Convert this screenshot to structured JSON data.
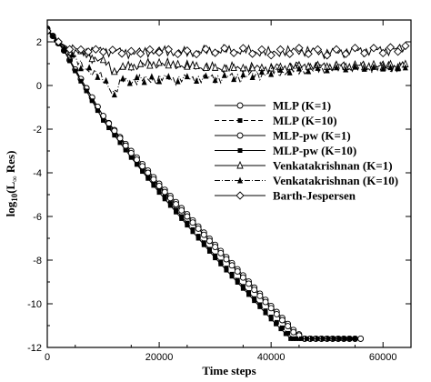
{
  "chart_data": {
    "type": "line",
    "xlabel": "Time steps",
    "ylabel_main": "log",
    "ylabel_sub": "10",
    "ylabel_rest": "(L",
    "ylabel_sub2": "∞",
    "ylabel_end": " Res)",
    "xlim": [
      0,
      65000
    ],
    "ylim": [
      -12,
      3
    ],
    "x_ticks": [
      0,
      20000,
      40000,
      60000
    ],
    "x_tick_labels": [
      "0",
      "20000",
      "40000",
      "60000"
    ],
    "y_ticks": [
      2,
      0,
      -2,
      -4,
      -6,
      -8,
      -10,
      -12
    ],
    "y_tick_labels": [
      "2",
      "0",
      "-2",
      "-4",
      "-6",
      "-8",
      "-10",
      "-12"
    ],
    "legend_position": "right",
    "series": [
      {
        "name": "MLP (K=1)",
        "marker": "circle-open",
        "dash": "solid",
        "points": [
          [
            0,
            2.6
          ],
          [
            3000,
            1.6
          ],
          [
            6000,
            0.3
          ],
          [
            10000,
            -1.4
          ],
          [
            15000,
            -3.0
          ],
          [
            20000,
            -4.5
          ],
          [
            25000,
            -5.9
          ],
          [
            30000,
            -7.3
          ],
          [
            35000,
            -8.7
          ],
          [
            40000,
            -10.1
          ],
          [
            44000,
            -11.2
          ],
          [
            46000,
            -11.6
          ],
          [
            56000,
            -11.6
          ]
        ]
      },
      {
        "name": "MLP (K=10)",
        "marker": "square-filled",
        "dash": "dashed",
        "points": [
          [
            0,
            2.6
          ],
          [
            3000,
            1.6
          ],
          [
            6000,
            0.2
          ],
          [
            10000,
            -1.5
          ],
          [
            15000,
            -3.2
          ],
          [
            20000,
            -4.8
          ],
          [
            25000,
            -6.3
          ],
          [
            30000,
            -7.8
          ],
          [
            35000,
            -9.2
          ],
          [
            40000,
            -10.6
          ],
          [
            44000,
            -11.6
          ],
          [
            55000,
            -11.6
          ]
        ]
      },
      {
        "name": "MLP-pw (K=1)",
        "marker": "circle-open",
        "dash": "solid",
        "points": [
          [
            0,
            2.6
          ],
          [
            3000,
            1.6
          ],
          [
            6000,
            0.3
          ],
          [
            10000,
            -1.4
          ],
          [
            15000,
            -3.1
          ],
          [
            20000,
            -4.6
          ],
          [
            25000,
            -6.0
          ],
          [
            30000,
            -7.4
          ],
          [
            35000,
            -8.8
          ],
          [
            40000,
            -10.2
          ],
          [
            44000,
            -11.3
          ],
          [
            46000,
            -11.6
          ],
          [
            56000,
            -11.6
          ]
        ]
      },
      {
        "name": "MLP-pw (K=10)",
        "marker": "square-filled",
        "dash": "solid",
        "points": [
          [
            0,
            2.6
          ],
          [
            3000,
            1.6
          ],
          [
            6000,
            0.2
          ],
          [
            10000,
            -1.6
          ],
          [
            15000,
            -3.3
          ],
          [
            20000,
            -4.9
          ],
          [
            25000,
            -6.4
          ],
          [
            30000,
            -7.9
          ],
          [
            35000,
            -9.3
          ],
          [
            40000,
            -10.7
          ],
          [
            43500,
            -11.6
          ],
          [
            55000,
            -11.6
          ]
        ]
      },
      {
        "name": "Venkatakrishnan (K=1)",
        "marker": "triangle-open",
        "dash": "solid",
        "points": [
          [
            0,
            2.5
          ],
          [
            2000,
            2.0
          ],
          [
            4000,
            1.6
          ],
          [
            6000,
            1.5
          ],
          [
            8000,
            1.3
          ],
          [
            10000,
            1.1
          ],
          [
            12000,
            0.7
          ],
          [
            15000,
            0.9
          ],
          [
            20000,
            1.0
          ],
          [
            25000,
            0.9
          ],
          [
            30000,
            0.8
          ],
          [
            35000,
            0.8
          ],
          [
            40000,
            0.8
          ],
          [
            45000,
            0.9
          ],
          [
            50000,
            0.9
          ],
          [
            55000,
            0.9
          ],
          [
            60000,
            0.9
          ],
          [
            64000,
            0.9
          ]
        ]
      },
      {
        "name": "Venkatakrishnan (K=10)",
        "marker": "triangle-filled",
        "dash": "dashdot",
        "points": [
          [
            0,
            2.5
          ],
          [
            3000,
            1.7
          ],
          [
            6000,
            0.9
          ],
          [
            9000,
            0.5
          ],
          [
            12000,
            -0.3
          ],
          [
            13500,
            0.2
          ],
          [
            16000,
            0.25
          ],
          [
            20000,
            0.3
          ],
          [
            25000,
            0.3
          ],
          [
            30000,
            0.35
          ],
          [
            35000,
            0.4
          ],
          [
            40000,
            0.6
          ],
          [
            45000,
            0.7
          ],
          [
            50000,
            0.75
          ],
          [
            55000,
            0.8
          ],
          [
            60000,
            0.8
          ],
          [
            64000,
            0.8
          ]
        ]
      },
      {
        "name": "Barth-Jespersen",
        "marker": "diamond-open",
        "dash": "solid",
        "points": [
          [
            0,
            2.5
          ],
          [
            2000,
            2.0
          ],
          [
            4000,
            1.7
          ],
          [
            6000,
            1.6
          ],
          [
            10000,
            1.6
          ],
          [
            15000,
            1.5
          ],
          [
            20000,
            1.6
          ],
          [
            25000,
            1.5
          ],
          [
            30000,
            1.6
          ],
          [
            35000,
            1.6
          ],
          [
            40000,
            1.5
          ],
          [
            45000,
            1.6
          ],
          [
            50000,
            1.5
          ],
          [
            55000,
            1.6
          ],
          [
            60000,
            1.6
          ],
          [
            64000,
            1.7
          ]
        ]
      }
    ]
  }
}
